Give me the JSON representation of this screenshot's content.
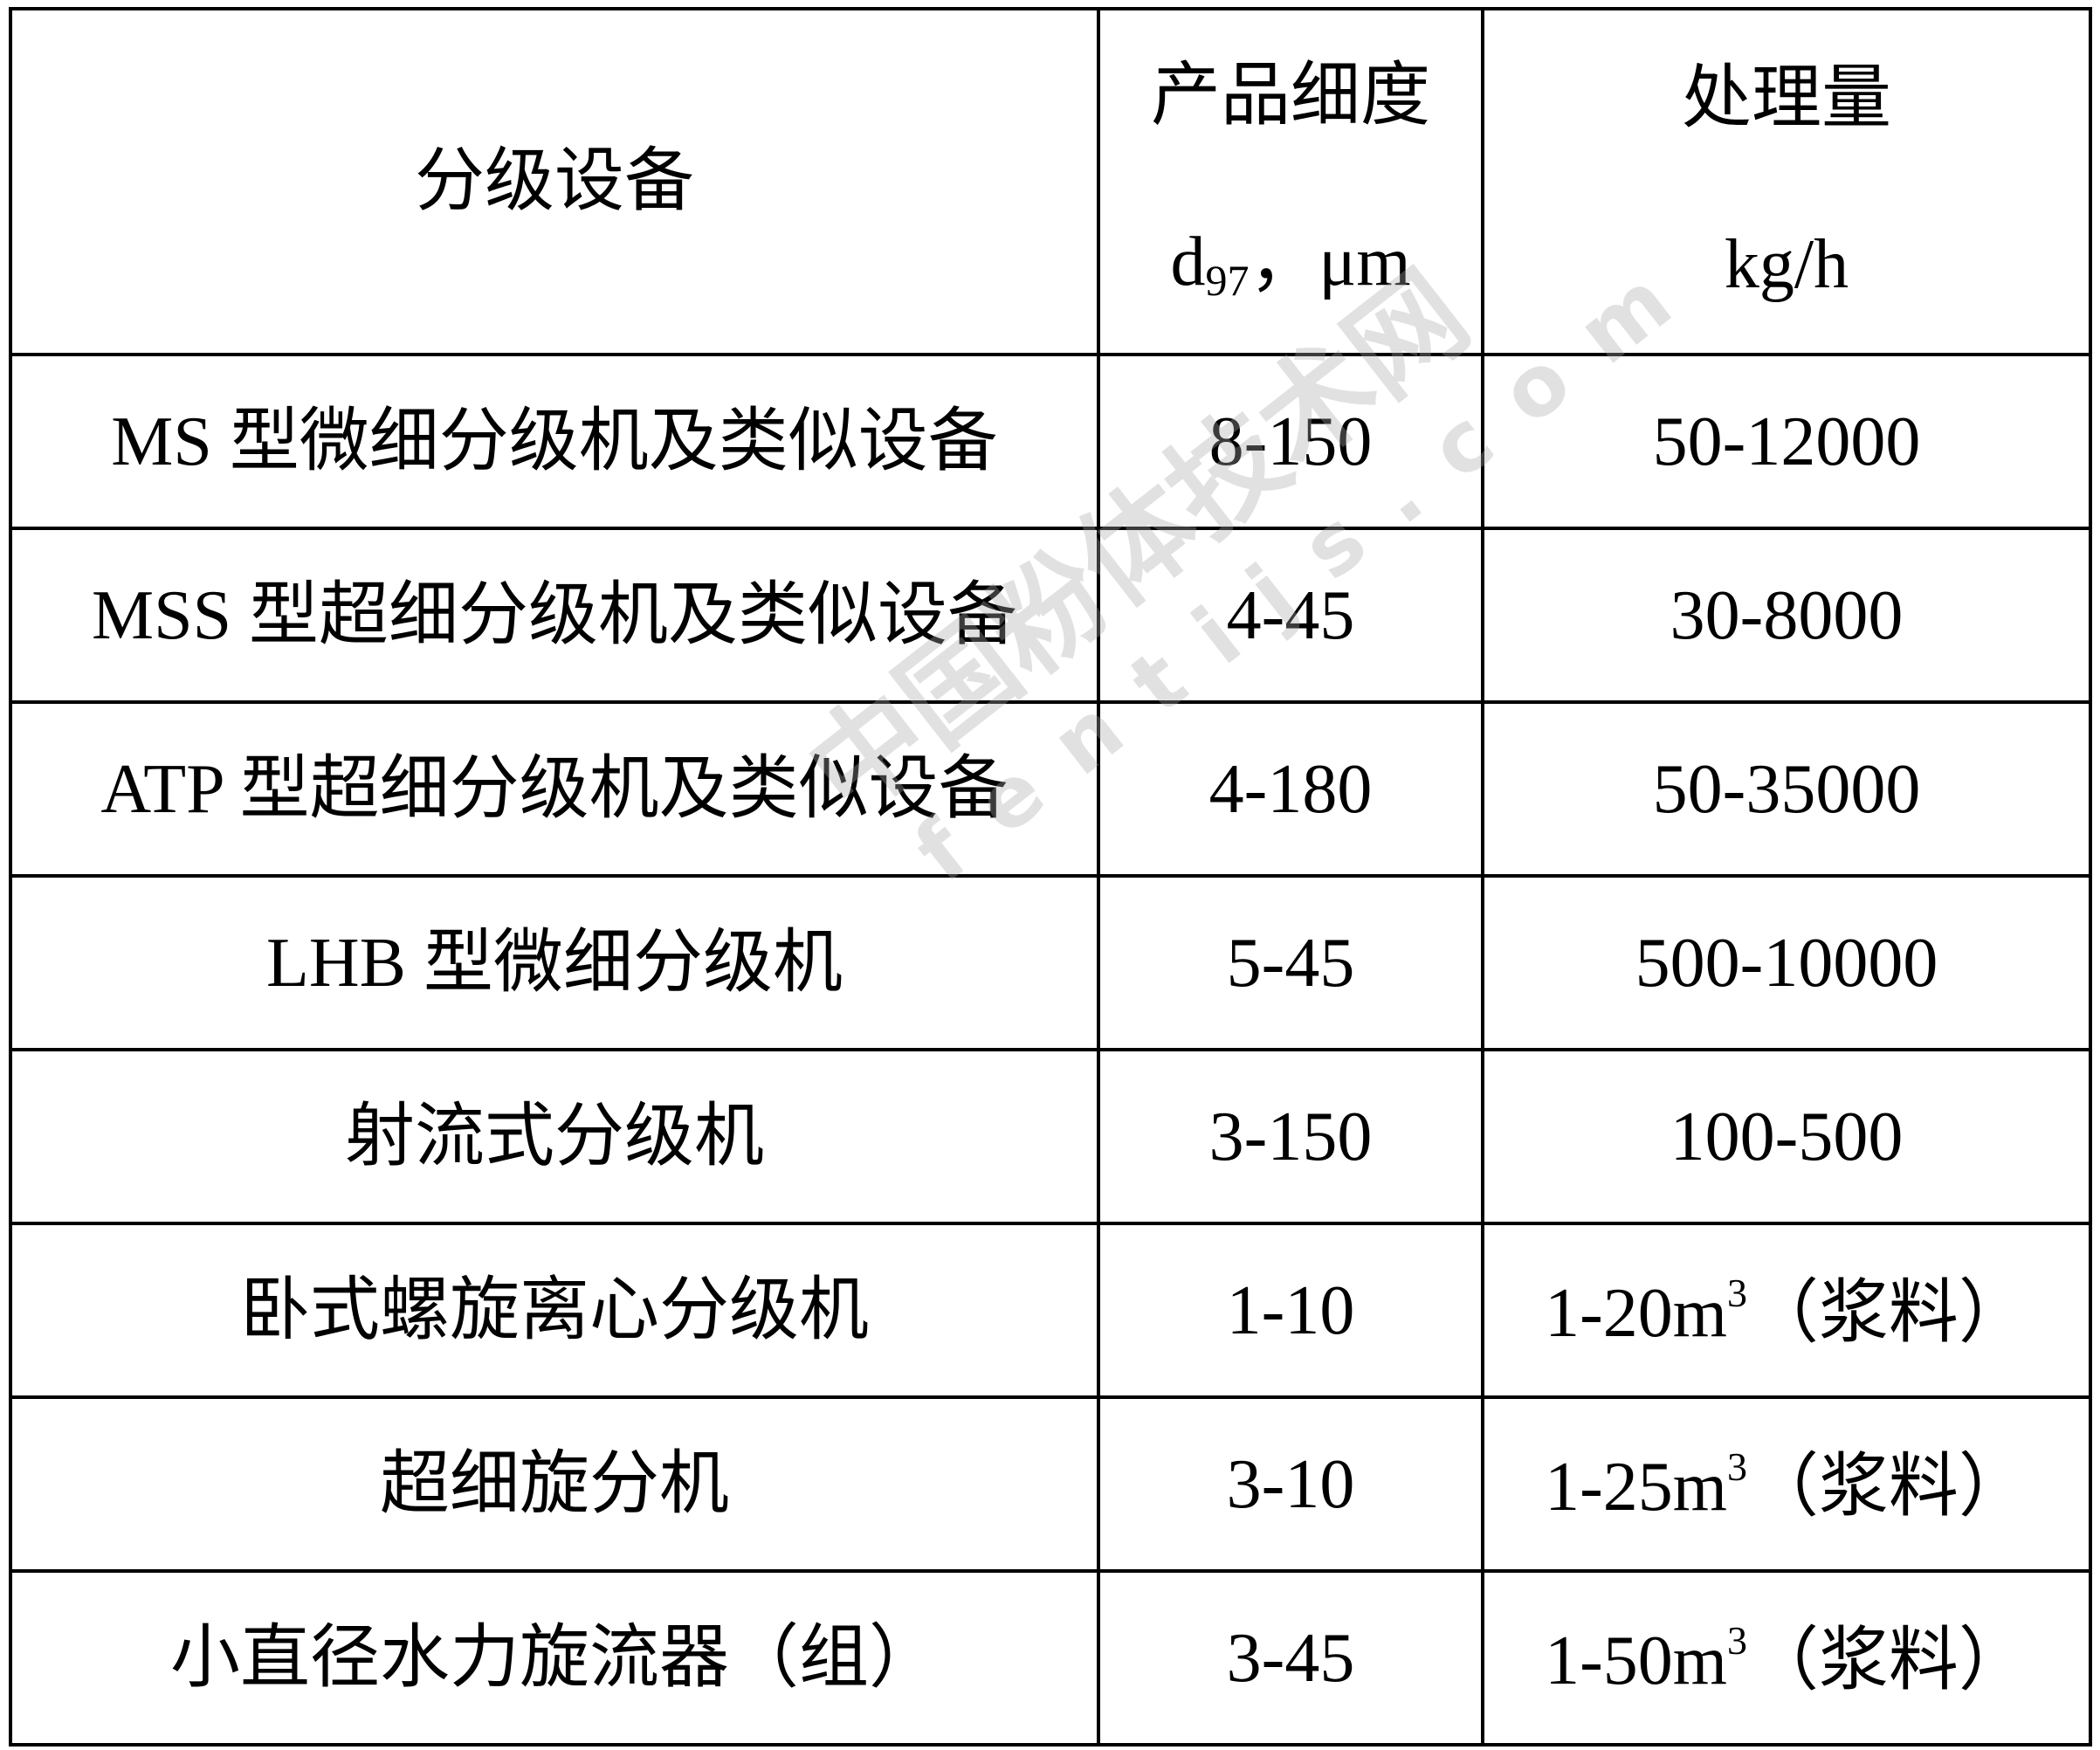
{
  "table": {
    "headers": {
      "equipment": "分级设备",
      "fineness_line1": "产品细度",
      "fineness_symbol": "d",
      "fineness_subscript": "97",
      "fineness_unit": "，μm",
      "capacity_line1": "处理量",
      "capacity_unit": "kg/h"
    },
    "rows": [
      {
        "equipment": "MS 型微细分级机及类似设备",
        "fineness": "8-150",
        "capacity": "50-12000"
      },
      {
        "equipment": "MSS 型超细分级机及类似设备",
        "fineness": "4-45",
        "capacity": "30-8000"
      },
      {
        "equipment": "ATP 型超细分级机及类似设备",
        "fineness": "4-180",
        "capacity": "50-35000"
      },
      {
        "equipment": "LHB 型微细分级机",
        "fineness": "5-45",
        "capacity": "500-10000"
      },
      {
        "equipment": "射流式分级机",
        "fineness": "3-150",
        "capacity": "100-500"
      },
      {
        "equipment": "卧式螺旋离心分级机",
        "fineness": "1-10",
        "capacity": "1-20m",
        "capacity_sup": "3",
        "capacity_note": "（浆料）"
      },
      {
        "equipment": "超细旋分机",
        "fineness": "3-10",
        "capacity": "1-25m",
        "capacity_sup": "3",
        "capacity_note": "（浆料）"
      },
      {
        "equipment": "小直径水力旋流器（组）",
        "fineness": "3-45",
        "capacity": "1-50m",
        "capacity_sup": "3",
        "capacity_note": "（浆料）"
      }
    ]
  },
  "watermark": {
    "cn": "中国粉体技术网",
    "en": "fentijs.com"
  }
}
